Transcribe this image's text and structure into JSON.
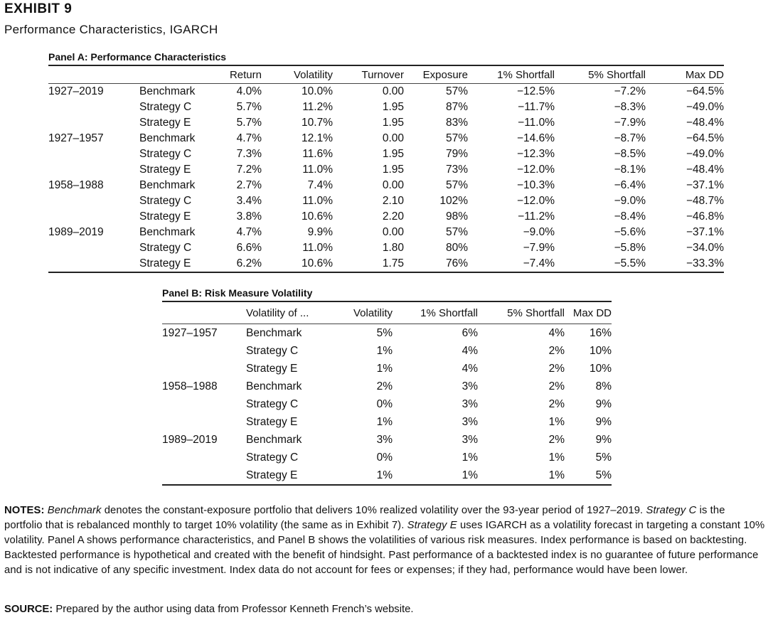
{
  "exhibit": {
    "label": "EXHIBIT 9",
    "title": "Performance Characteristics, IGARCH"
  },
  "panel_a": {
    "title": "Panel A: Performance Characteristics",
    "headers": [
      "",
      "",
      "Return",
      "Volatility",
      "Turnover",
      "Exposure",
      "1% Shortfall",
      "5% Shortfall",
      "Max DD"
    ],
    "rows": [
      [
        "1927–2019",
        "Benchmark",
        "4.0%",
        "10.0%",
        "0.00",
        "57%",
        "−12.5%",
        "−7.2%",
        "−64.5%"
      ],
      [
        "",
        "Strategy C",
        "5.7%",
        "11.2%",
        "1.95",
        "87%",
        "−11.7%",
        "−8.3%",
        "−49.0%"
      ],
      [
        "",
        "Strategy E",
        "5.7%",
        "10.7%",
        "1.95",
        "83%",
        "−11.0%",
        "−7.9%",
        "−48.4%"
      ],
      [
        "1927–1957",
        "Benchmark",
        "4.7%",
        "12.1%",
        "0.00",
        "57%",
        "−14.6%",
        "−8.7%",
        "−64.5%"
      ],
      [
        "",
        "Strategy C",
        "7.3%",
        "11.6%",
        "1.95",
        "79%",
        "−12.3%",
        "−8.5%",
        "−49.0%"
      ],
      [
        "",
        "Strategy E",
        "7.2%",
        "11.0%",
        "1.95",
        "73%",
        "−12.0%",
        "−8.1%",
        "−48.4%"
      ],
      [
        "1958–1988",
        "Benchmark",
        "2.7%",
        "7.4%",
        "0.00",
        "57%",
        "−10.3%",
        "−6.4%",
        "−37.1%"
      ],
      [
        "",
        "Strategy C",
        "3.4%",
        "11.0%",
        "2.10",
        "102%",
        "−12.0%",
        "−9.0%",
        "−48.7%"
      ],
      [
        "",
        "Strategy E",
        "3.8%",
        "10.6%",
        "2.20",
        "98%",
        "−11.2%",
        "−8.4%",
        "−46.8%"
      ],
      [
        "1989–2019",
        "Benchmark",
        "4.7%",
        "9.9%",
        "0.00",
        "57%",
        "−9.0%",
        "−5.6%",
        "−37.1%"
      ],
      [
        "",
        "Strategy C",
        "6.6%",
        "11.0%",
        "1.80",
        "80%",
        "−7.9%",
        "−5.8%",
        "−34.0%"
      ],
      [
        "",
        "Strategy E",
        "6.2%",
        "10.6%",
        "1.75",
        "76%",
        "−7.4%",
        "−5.5%",
        "−33.3%"
      ]
    ]
  },
  "panel_b": {
    "title": "Panel B: Risk Measure Volatility",
    "headers": [
      "",
      "Volatility of ...",
      "Volatility",
      "1% Shortfall",
      "5% Shortfall",
      "Max DD"
    ],
    "rows": [
      [
        "1927–1957",
        "Benchmark",
        "5%",
        "6%",
        "4%",
        "16%"
      ],
      [
        "",
        "Strategy C",
        "1%",
        "4%",
        "2%",
        "10%"
      ],
      [
        "",
        "Strategy E",
        "1%",
        "4%",
        "2%",
        "10%"
      ],
      [
        "1958–1988",
        "Benchmark",
        "2%",
        "3%",
        "2%",
        "8%"
      ],
      [
        "",
        "Strategy C",
        "0%",
        "3%",
        "2%",
        "9%"
      ],
      [
        "",
        "Strategy E",
        "1%",
        "3%",
        "1%",
        "9%"
      ],
      [
        "1989–2019",
        "Benchmark",
        "3%",
        "3%",
        "2%",
        "9%"
      ],
      [
        "",
        "Strategy C",
        "0%",
        "1%",
        "1%",
        "5%"
      ],
      [
        "",
        "Strategy E",
        "1%",
        "1%",
        "1%",
        "5%"
      ]
    ]
  },
  "notes": {
    "label": "NOTES:",
    "benchmark_term": "Benchmark",
    "part1": " denotes the constant-exposure portfolio that delivers 10% realized volatility over the 93-year period of 1927–2019. ",
    "strategy_c_term": "Strategy C",
    "part2": " is the portfolio that is rebalanced monthly to target 10% volatility (the same as in Exhibit 7). ",
    "strategy_e_term": "Strategy E",
    "part3": " uses IGARCH as a volatility forecast in targeting a constant 10% volatility. Panel A shows performance characteristics, and Panel B shows the volatilities of various risk measures. Index performance is based on backtesting. Backtested performance is hypothetical and created with the benefit of hindsight. Past performance of a backtested index is no guarantee of future performance and is not indicative of any specific investment. Index data do not account for fees or expenses; if they had, performance would have been lower."
  },
  "source": {
    "label": "SOURCE:",
    "text": " Prepared by the author using data from Professor Kenneth French’s website."
  }
}
